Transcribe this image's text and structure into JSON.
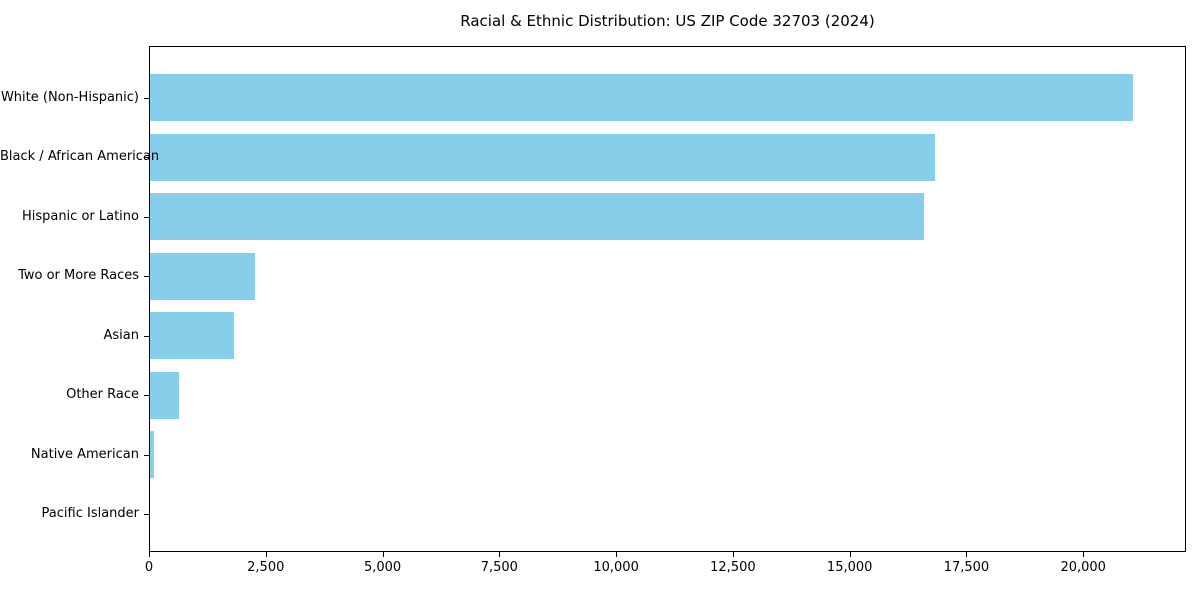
{
  "title": "Racial & Ethnic Distribution: US ZIP Code 32703 (2024)",
  "chart_data": {
    "type": "bar",
    "orientation": "horizontal",
    "title": "Racial & Ethnic Distribution: US ZIP Code 32703 (2024)",
    "xlabel": "",
    "ylabel": "",
    "categories": [
      "White (Non-Hispanic)",
      "Black / African American",
      "Hispanic or Latino",
      "Two or More Races",
      "Asian",
      "Other Race",
      "Native American",
      "Pacific Islander"
    ],
    "values": [
      21050,
      16800,
      16580,
      2250,
      1800,
      620,
      80,
      0
    ],
    "xlim": [
      0,
      22200
    ],
    "xticks": [
      0,
      2500,
      5000,
      7500,
      10000,
      12500,
      15000,
      17500,
      20000
    ],
    "xtick_labels": [
      "0",
      "2,500",
      "5,000",
      "7,500",
      "10,000",
      "12,500",
      "15,000",
      "17,500",
      "20,000"
    ],
    "bar_color": "#87CEEB",
    "axis_color": "#000000",
    "text_color": "#000000",
    "background_color": "#ffffff",
    "grid": false,
    "legend": null
  }
}
